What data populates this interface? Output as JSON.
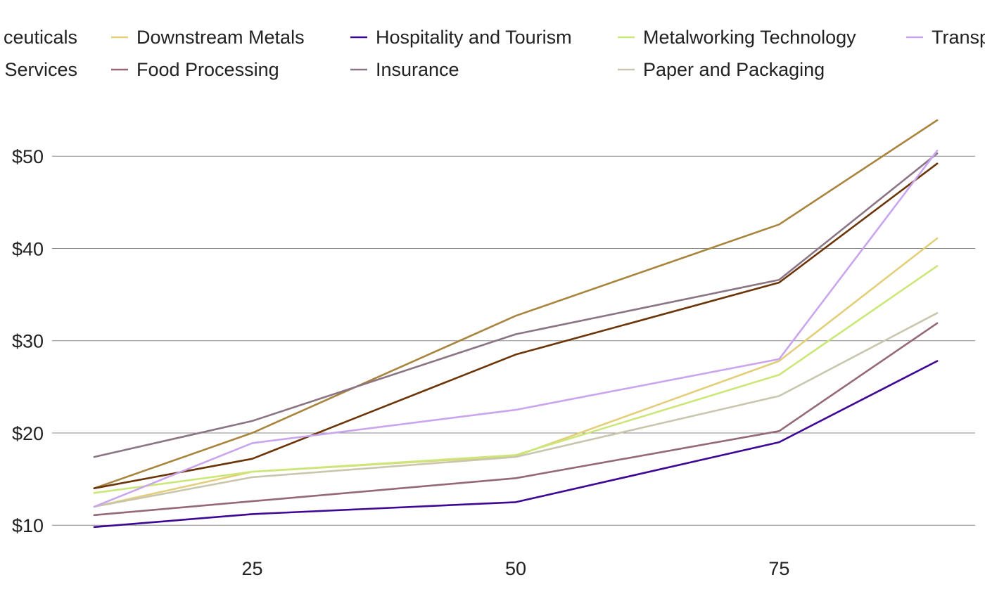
{
  "chart_data": {
    "type": "line",
    "title": "",
    "xlabel": "",
    "ylabel": "",
    "x": [
      10,
      25,
      50,
      75,
      90
    ],
    "xticks": [
      25,
      50,
      75
    ],
    "yticks": [
      10,
      20,
      30,
      40,
      50
    ],
    "ytick_labels": [
      "$10",
      "$20",
      "$30",
      "$40",
      "$50"
    ],
    "xlim": [
      6,
      93.6
    ],
    "ylim": [
      7.5,
      55.5
    ],
    "grid": "horizontal",
    "legend_position": "top",
    "series": [
      {
        "name": "Pharmaceuticals",
        "legend_text": "ceuticals",
        "color": "#a8843d",
        "values": [
          14.0,
          20.0,
          32.7,
          42.6,
          53.9
        ]
      },
      {
        "name": "Services",
        "legend_text": "Services",
        "color": "#6b3508",
        "values": [
          14.0,
          17.2,
          28.5,
          36.3,
          49.2
        ]
      },
      {
        "name": "Downstream Metals",
        "legend_text": "Downstream Metals",
        "color": "#e3cf79",
        "values": [
          12.0,
          15.8,
          17.5,
          27.8,
          41.1
        ]
      },
      {
        "name": "Food Processing",
        "legend_text": "Food Processing",
        "color": "#956879",
        "values": [
          11.1,
          12.6,
          15.1,
          20.2,
          31.9
        ]
      },
      {
        "name": "Hospitality and Tourism",
        "legend_text": "Hospitality and Tourism",
        "color": "#3e0894",
        "values": [
          9.8,
          11.2,
          12.5,
          19.0,
          27.8
        ]
      },
      {
        "name": "Insurance",
        "legend_text": "Insurance",
        "color": "#8b7585",
        "values": [
          17.4,
          21.3,
          30.7,
          36.6,
          50.3
        ]
      },
      {
        "name": "Metalworking Technology",
        "legend_text": "Metalworking Technology",
        "color": "#cbe779",
        "values": [
          13.5,
          15.8,
          17.6,
          26.3,
          38.1
        ]
      },
      {
        "name": "Paper and Packaging",
        "legend_text": "Paper and Packaging",
        "color": "#c8c6ad",
        "values": [
          12.0,
          15.2,
          17.4,
          24.0,
          33.0
        ]
      },
      {
        "name": "Transportation",
        "legend_text": "Transp",
        "color": "#c9a5ee",
        "values": [
          12.0,
          18.9,
          22.5,
          28.0,
          50.6
        ]
      }
    ]
  }
}
